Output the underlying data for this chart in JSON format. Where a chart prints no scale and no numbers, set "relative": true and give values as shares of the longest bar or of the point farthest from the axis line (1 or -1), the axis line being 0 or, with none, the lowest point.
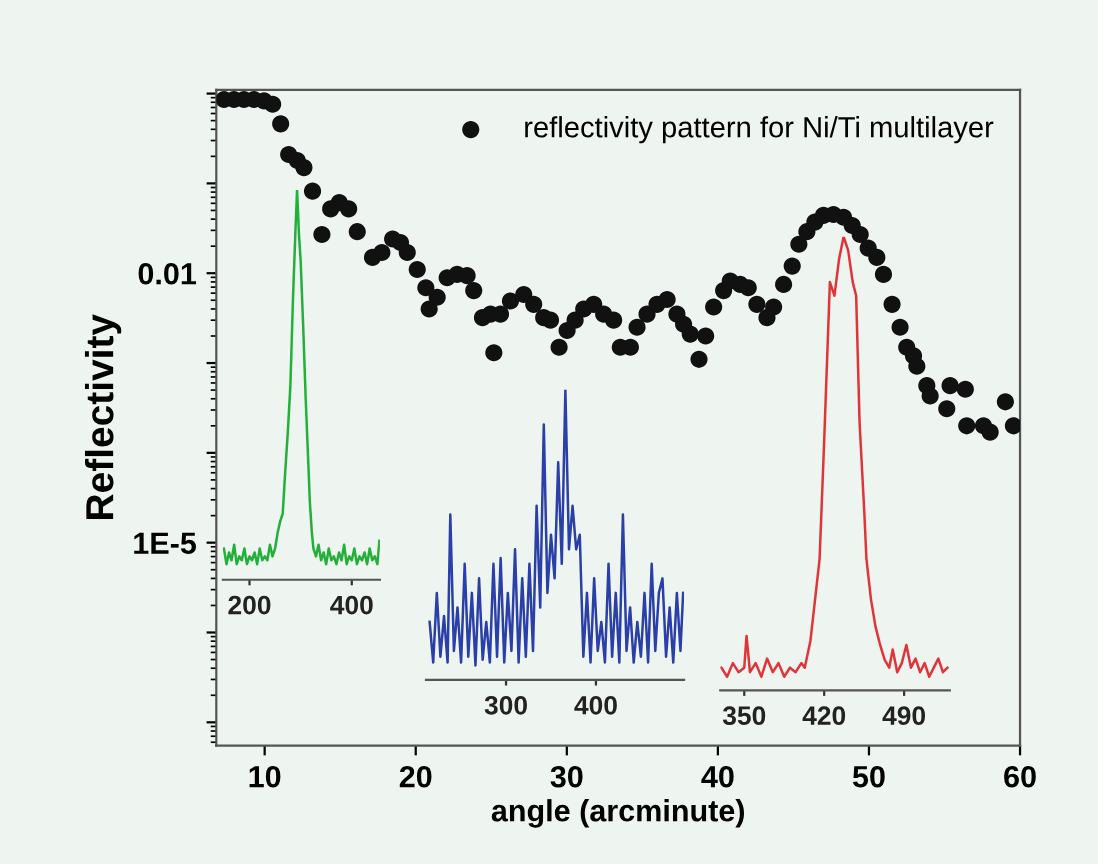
{
  "chart_data": [
    {
      "type": "scatter",
      "xlabel": "angle (arcminute)",
      "ylabel": "Reflectivity",
      "log": "y",
      "legend": "top right",
      "marker": "circle",
      "grid": false,
      "xlim": [
        6.8,
        60
      ],
      "xticks": [
        10,
        20,
        30,
        40,
        50,
        60
      ],
      "ylim": [
        5.5e-08,
        1.1
      ],
      "yticks": [
        {
          "value": 1,
          "label": null
        },
        {
          "value": 0.1,
          "label": null
        },
        {
          "value": 0.01,
          "label": "0.01"
        },
        {
          "value": 0.001,
          "label": null
        },
        {
          "value": 0.0001,
          "label": null
        },
        {
          "value": 1e-05,
          "label": "1E-5"
        },
        {
          "value": 1e-06,
          "label": null
        },
        {
          "value": 1e-07,
          "label": null
        }
      ],
      "series": [
        {
          "name": "reflectivity pattern for Ni/Ti multilayer",
          "color": "#111111",
          "x": [
            7.31,
            7.97,
            8.63,
            9.29,
            9.96,
            10.53,
            11.06,
            11.59,
            12.16,
            12.6,
            13.17,
            13.79,
            14.37,
            14.94,
            15.56,
            16.13,
            17.14,
            17.76,
            18.47,
            18.99,
            19.44,
            20.1,
            20.67,
            20.89,
            21.42,
            22.08,
            22.74,
            23.4,
            23.84,
            24.42,
            24.95,
            25.17,
            25.61,
            26.27,
            27.15,
            27.81,
            28.47,
            28.92,
            29.49,
            30.02,
            30.55,
            31.12,
            31.78,
            32.44,
            33.1,
            33.54,
            34.21,
            34.65,
            35.31,
            35.97,
            36.64,
            37.29,
            37.73,
            38.17,
            38.75,
            39.19,
            39.72,
            40.38,
            40.82,
            41.48,
            42.01,
            42.58,
            43.25,
            43.69,
            44.35,
            44.92,
            45.36,
            45.89,
            46.42,
            46.99,
            47.65,
            48.32,
            48.89,
            49.42,
            49.95,
            50.52,
            50.96,
            51.53,
            52.06,
            52.5,
            52.95,
            53.17,
            53.83,
            54.05,
            55.37,
            55.15,
            56.38,
            56.47,
            57.58,
            58.02,
            59.03,
            59.56
          ],
          "values": [
            0.86,
            0.86,
            0.86,
            0.86,
            0.83,
            0.76,
            0.46,
            0.21,
            0.18,
            0.15,
            0.082,
            0.027,
            0.052,
            0.061,
            0.052,
            0.029,
            0.015,
            0.017,
            0.024,
            0.022,
            0.017,
            0.011,
            0.0069,
            0.004,
            0.0054,
            0.0089,
            0.0097,
            0.0094,
            0.0064,
            0.0032,
            0.0035,
            0.0013,
            0.0035,
            0.0049,
            0.0058,
            0.0045,
            0.0032,
            0.003,
            0.0015,
            0.0023,
            0.003,
            0.004,
            0.0045,
            0.0035,
            0.003,
            0.0015,
            0.0015,
            0.0025,
            0.0035,
            0.0045,
            0.0051,
            0.0035,
            0.0027,
            0.0021,
            0.0011,
            0.002,
            0.0042,
            0.0064,
            0.0082,
            0.0075,
            0.0069,
            0.0045,
            0.0032,
            0.0042,
            0.0075,
            0.012,
            0.021,
            0.029,
            0.037,
            0.044,
            0.045,
            0.042,
            0.034,
            0.027,
            0.019,
            0.015,
            0.0097,
            0.0045,
            0.0025,
            0.0015,
            0.0012,
            0.00092,
            0.00056,
            0.00043,
            0.00056,
            0.00031,
            0.00051,
            0.0002,
            0.0002,
            0.00017,
            0.00037,
            0.0002
          ]
        }
      ]
    },
    {
      "type": "line",
      "relative": true,
      "tick_labels": "x",
      "xlim": [
        148,
        455
      ],
      "xticks": [
        200,
        400
      ],
      "series": [
        {
          "color": "#22b03a",
          "x": [
            150,
            155,
            160,
            165,
            170,
            175,
            180,
            185,
            190,
            195,
            200,
            205,
            210,
            215,
            220,
            225,
            230,
            235,
            240,
            245,
            250,
            255,
            260,
            265,
            270,
            275,
            280,
            285,
            290,
            293,
            297,
            300,
            305,
            310,
            315,
            318,
            322,
            325,
            330,
            335,
            340,
            345,
            350,
            355,
            360,
            365,
            370,
            375,
            380,
            385,
            390,
            395,
            400,
            405,
            410,
            415,
            420,
            425,
            430,
            435,
            440,
            445,
            450,
            454
          ],
          "values": [
            0.08,
            0.04,
            0.07,
            0.05,
            0.09,
            0.04,
            0.06,
            0.05,
            0.08,
            0.04,
            0.06,
            0.05,
            0.07,
            0.04,
            0.08,
            0.05,
            0.06,
            0.05,
            0.09,
            0.06,
            0.08,
            0.12,
            0.15,
            0.17,
            0.28,
            0.38,
            0.5,
            0.72,
            0.9,
            1.0,
            0.88,
            0.82,
            0.65,
            0.46,
            0.3,
            0.2,
            0.12,
            0.08,
            0.06,
            0.09,
            0.05,
            0.07,
            0.04,
            0.08,
            0.05,
            0.06,
            0.04,
            0.07,
            0.05,
            0.09,
            0.04,
            0.06,
            0.05,
            0.08,
            0.04,
            0.06,
            0.05,
            0.07,
            0.04,
            0.08,
            0.05,
            0.06,
            0.04,
            0.1
          ]
        }
      ]
    },
    {
      "type": "line",
      "relative": true,
      "tick_labels": "x",
      "xlim": [
        211,
        498
      ],
      "xticks": [
        300,
        400
      ],
      "series": [
        {
          "color": "#2b3fa8",
          "x": [
            215,
            219,
            223,
            227,
            231,
            235,
            238,
            242,
            246,
            250,
            254,
            258,
            262,
            266,
            270,
            274,
            278,
            282,
            286,
            290,
            294,
            298,
            302,
            306,
            310,
            314,
            318,
            322,
            326,
            330,
            334,
            338,
            342,
            346,
            350,
            354,
            358,
            362,
            366,
            370,
            374,
            378,
            382,
            386,
            390,
            394,
            398,
            402,
            406,
            410,
            414,
            418,
            422,
            426,
            430,
            434,
            438,
            442,
            446,
            450,
            454,
            458,
            462,
            466,
            470,
            474,
            478,
            482,
            486,
            490,
            494,
            497
          ],
          "values": [
            0.2,
            0.06,
            0.3,
            0.08,
            0.22,
            0.06,
            0.57,
            0.1,
            0.25,
            0.06,
            0.4,
            0.08,
            0.3,
            0.05,
            0.35,
            0.07,
            0.2,
            0.06,
            0.4,
            0.08,
            0.42,
            0.06,
            0.3,
            0.1,
            0.45,
            0.06,
            0.35,
            0.08,
            0.4,
            0.1,
            0.6,
            0.25,
            0.88,
            0.3,
            0.5,
            0.35,
            0.75,
            0.4,
            1.0,
            0.45,
            0.6,
            0.45,
            0.5,
            0.08,
            0.3,
            0.06,
            0.35,
            0.1,
            0.2,
            0.06,
            0.4,
            0.08,
            0.3,
            0.06,
            0.57,
            0.1,
            0.25,
            0.06,
            0.2,
            0.08,
            0.3,
            0.06,
            0.4,
            0.1,
            0.3,
            0.35,
            0.08,
            0.25,
            0.06,
            0.3,
            0.1,
            0.3
          ]
        }
      ]
    },
    {
      "type": "line",
      "relative": true,
      "tick_labels": "x",
      "xlim": [
        329,
        530
      ],
      "xticks": [
        350,
        420,
        490
      ],
      "series": [
        {
          "color": "#e0343a",
          "x": [
            330,
            335,
            340,
            345,
            350,
            352,
            355,
            360,
            365,
            370,
            375,
            380,
            385,
            390,
            395,
            400,
            403,
            408,
            412,
            416,
            420,
            425,
            429,
            433,
            437,
            441,
            445,
            448,
            451,
            455,
            457,
            461,
            465,
            469,
            473,
            477,
            480,
            484,
            488,
            492,
            496,
            500,
            504,
            508,
            512,
            516,
            520,
            524,
            528
          ],
          "values": [
            0.05,
            0.03,
            0.06,
            0.04,
            0.05,
            0.12,
            0.04,
            0.06,
            0.03,
            0.07,
            0.04,
            0.06,
            0.03,
            0.05,
            0.04,
            0.06,
            0.05,
            0.11,
            0.2,
            0.29,
            0.55,
            0.9,
            0.87,
            0.95,
            1.0,
            0.97,
            0.9,
            0.87,
            0.59,
            0.4,
            0.29,
            0.2,
            0.14,
            0.1,
            0.067,
            0.05,
            0.09,
            0.04,
            0.06,
            0.1,
            0.05,
            0.07,
            0.04,
            0.06,
            0.03,
            0.05,
            0.07,
            0.04,
            0.05
          ]
        }
      ]
    }
  ]
}
